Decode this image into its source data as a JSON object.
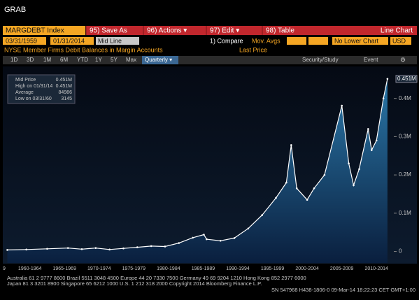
{
  "header": {
    "title": "GRAB"
  },
  "toolbar": {
    "ticker": "MARGDEBT Index",
    "buttons": [
      "95) Save As",
      "96) Actions ▾",
      "97) Edit ▾",
      "98) Table"
    ],
    "chart_kind": "Line Chart"
  },
  "settings": {
    "start": "03/31/1959",
    "end": "01/31/2014",
    "mode": "Mid Line",
    "compare": "1) Compare",
    "mov_avgs": "Mov. Avgs",
    "lower": "No Lower Chart",
    "currency": "USD"
  },
  "description": "NYSE Member Firms Debit Balances in Margin Accounts",
  "price_field": "Last Price",
  "periods": [
    "1D",
    "3D",
    "1M",
    "6M",
    "YTD",
    "1Y",
    "5Y",
    "Max"
  ],
  "frequency": "Quarterly ▾",
  "tools": [
    "Security/Study",
    "Event"
  ],
  "legend_box": {
    "rows": [
      [
        "Mid Price",
        "0.451M"
      ],
      [
        "High on 01/31/14",
        "0.451M"
      ],
      [
        "Average",
        "84986"
      ],
      [
        "Low on 03/31/60",
        "3145"
      ]
    ]
  },
  "chart_data": {
    "type": "line",
    "x": [
      1959.25,
      1962,
      1965,
      1968,
      1970,
      1972,
      1974,
      1976,
      1978,
      1980,
      1982,
      1984,
      1986,
      1987.6,
      1988,
      1990,
      1992,
      1994,
      1996,
      1998,
      1999.5,
      2000.2,
      2001,
      2002.5,
      2003.5,
      2005,
      2007.5,
      2008.5,
      2009.2,
      2010,
      2011.3,
      2011.8,
      2012.5,
      2013.5,
      2014.08
    ],
    "values": [
      0.004,
      0.005,
      0.007,
      0.009,
      0.006,
      0.009,
      0.005,
      0.008,
      0.011,
      0.014,
      0.013,
      0.022,
      0.036,
      0.044,
      0.032,
      0.028,
      0.035,
      0.06,
      0.095,
      0.14,
      0.18,
      0.278,
      0.165,
      0.135,
      0.165,
      0.2,
      0.381,
      0.23,
      0.173,
      0.215,
      0.32,
      0.265,
      0.29,
      0.4,
      0.451
    ],
    "color": "#ffffff",
    "fill_color": "#1f5f8c",
    "last_value_label": "0.451M",
    "xlim": [
      1958.9,
      2015.0
    ],
    "xticks": [
      {
        "value": 1957.5,
        "label": "9"
      },
      {
        "value": 1962.5,
        "label": "1960-1964"
      },
      {
        "value": 1967.5,
        "label": "1965-1969"
      },
      {
        "value": 1972.5,
        "label": "1970-1974"
      },
      {
        "value": 1977.5,
        "label": "1975-1979"
      },
      {
        "value": 1982.5,
        "label": "1980-1984"
      },
      {
        "value": 1987.5,
        "label": "1985-1989"
      },
      {
        "value": 1992.5,
        "label": "1990-1994"
      },
      {
        "value": 1997.5,
        "label": "1995-1999"
      },
      {
        "value": 2002.5,
        "label": "2000-2004"
      },
      {
        "value": 2007.5,
        "label": "2005-2009"
      },
      {
        "value": 2012.5,
        "label": "2010-2014"
      }
    ],
    "ylim": [
      -0.03,
      0.478
    ],
    "yticks": [
      0,
      {
        "value": 0.1,
        "label": "0.1M"
      },
      {
        "value": 0.2,
        "label": "0.2M"
      },
      {
        "value": 0.3,
        "label": "0.3M"
      },
      {
        "value": 0.4,
        "label": "0.4M"
      }
    ],
    "grid": false
  },
  "footer": [
    "Australia 61 2 9777 8600 Brazil 5511 3048 4500 Europe 44 20 7330 7500 Germany 49 69 9204 1210 Hong Kong 852 2977 6000",
    "Japan 81 3 3201 8900          Singapore 65 6212 1000          U.S. 1 212 318 2000          Copyright 2014 Bloomberg Finance L.P.",
    "SN 547968 H438-1806-0 09-Mar-14 18:22:23 CET   GMT+1:00"
  ]
}
